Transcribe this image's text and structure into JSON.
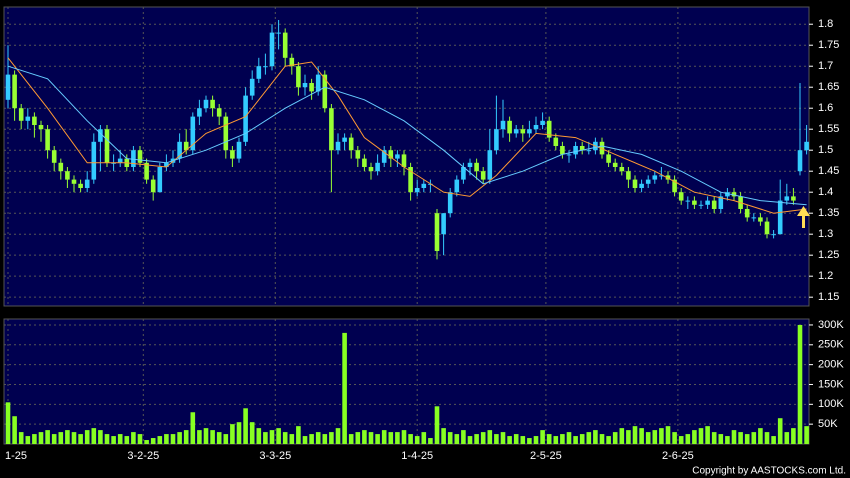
{
  "chart_data": {
    "type": "candlestick",
    "up_color": "#33ccff",
    "down_color": "#99ff33",
    "grid": true,
    "ylim": [
      1.129,
      1.841
    ],
    "yticks": [
      1.15,
      1.2,
      1.25,
      1.3,
      1.35,
      1.4,
      1.45,
      1.5,
      1.55,
      1.6,
      1.65,
      1.7,
      1.75,
      1.8
    ],
    "xticks": [
      {
        "value": 0,
        "label": "1-25"
      },
      {
        "value": 20.5,
        "label": "3-2-25"
      },
      {
        "value": 40.5,
        "label": "3-3-25"
      },
      {
        "value": 62,
        "label": "1-4-25"
      },
      {
        "value": 81.5,
        "label": "2-5-25"
      },
      {
        "value": 101.5,
        "label": "2-6-25"
      }
    ],
    "open": [
      1.62,
      1.68,
      1.6,
      1.57,
      1.58,
      1.56,
      1.55,
      1.5,
      1.47,
      1.45,
      1.43,
      1.42,
      1.41,
      1.43,
      1.52,
      1.55,
      1.47,
      1.47,
      1.48,
      1.46,
      1.5,
      1.47,
      1.43,
      1.4,
      1.46,
      1.47,
      1.48,
      1.52,
      1.5,
      1.58,
      1.6,
      1.62,
      1.6,
      1.58,
      1.5,
      1.48,
      1.52,
      1.63,
      1.67,
      1.7,
      1.7,
      1.78,
      1.78,
      1.72,
      1.7,
      1.65,
      1.66,
      1.64,
      1.68,
      1.6,
      1.5,
      1.52,
      1.53,
      1.5,
      1.48,
      1.46,
      1.45,
      1.47,
      1.5,
      1.48,
      1.49,
      1.46,
      1.4,
      1.41,
      1.42,
      1.35,
      1.3,
      1.35,
      1.4,
      1.43,
      1.46,
      1.47,
      1.45,
      1.43,
      1.5,
      1.55,
      1.57,
      1.54,
      1.55,
      1.54,
      1.55,
      1.56,
      1.57,
      1.53,
      1.51,
      1.49,
      1.49,
      1.51,
      1.5,
      1.5,
      1.52,
      1.49,
      1.47,
      1.46,
      1.45,
      1.43,
      1.41,
      1.42,
      1.43,
      1.44,
      1.44,
      1.43,
      1.4,
      1.38,
      1.38,
      1.37,
      1.37,
      1.38,
      1.36,
      1.39,
      1.4,
      1.39,
      1.36,
      1.34,
      1.34,
      1.33,
      1.3,
      1.3,
      1.38,
      1.39,
      1.45,
      1.5
    ],
    "high": [
      1.75,
      1.69,
      1.61,
      1.6,
      1.59,
      1.57,
      1.56,
      1.51,
      1.48,
      1.46,
      1.44,
      1.43,
      1.45,
      1.54,
      1.56,
      1.56,
      1.49,
      1.5,
      1.49,
      1.51,
      1.51,
      1.48,
      1.44,
      1.47,
      1.49,
      1.5,
      1.54,
      1.55,
      1.59,
      1.62,
      1.63,
      1.63,
      1.61,
      1.59,
      1.51,
      1.53,
      1.65,
      1.69,
      1.72,
      1.73,
      1.8,
      1.81,
      1.79,
      1.73,
      1.71,
      1.68,
      1.67,
      1.7,
      1.69,
      1.61,
      1.54,
      1.54,
      1.54,
      1.51,
      1.49,
      1.47,
      1.49,
      1.51,
      1.51,
      1.5,
      1.5,
      1.47,
      1.43,
      1.43,
      1.43,
      1.36,
      1.35,
      1.41,
      1.44,
      1.47,
      1.48,
      1.48,
      1.46,
      1.55,
      1.63,
      1.62,
      1.58,
      1.56,
      1.56,
      1.57,
      1.58,
      1.59,
      1.58,
      1.54,
      1.52,
      1.5,
      1.52,
      1.52,
      1.52,
      1.53,
      1.53,
      1.5,
      1.48,
      1.47,
      1.46,
      1.44,
      1.43,
      1.44,
      1.45,
      1.46,
      1.45,
      1.44,
      1.41,
      1.39,
      1.39,
      1.38,
      1.39,
      1.39,
      1.4,
      1.41,
      1.41,
      1.4,
      1.37,
      1.35,
      1.35,
      1.34,
      1.31,
      1.43,
      1.42,
      1.41,
      1.66,
      1.56
    ],
    "low": [
      1.6,
      1.57,
      1.55,
      1.55,
      1.53,
      1.52,
      1.48,
      1.45,
      1.43,
      1.41,
      1.4,
      1.4,
      1.4,
      1.42,
      1.45,
      1.46,
      1.45,
      1.46,
      1.45,
      1.45,
      1.46,
      1.42,
      1.38,
      1.4,
      1.45,
      1.46,
      1.47,
      1.49,
      1.49,
      1.56,
      1.59,
      1.58,
      1.56,
      1.48,
      1.46,
      1.47,
      1.51,
      1.62,
      1.66,
      1.68,
      1.69,
      1.74,
      1.7,
      1.68,
      1.63,
      1.63,
      1.62,
      1.63,
      1.59,
      1.4,
      1.49,
      1.5,
      1.48,
      1.46,
      1.45,
      1.43,
      1.44,
      1.46,
      1.46,
      1.46,
      1.44,
      1.38,
      1.39,
      1.4,
      1.4,
      1.24,
      1.25,
      1.34,
      1.39,
      1.42,
      1.44,
      1.43,
      1.42,
      1.42,
      1.49,
      1.53,
      1.52,
      1.53,
      1.52,
      1.53,
      1.54,
      1.55,
      1.52,
      1.5,
      1.48,
      1.47,
      1.48,
      1.49,
      1.49,
      1.49,
      1.48,
      1.46,
      1.45,
      1.44,
      1.41,
      1.4,
      1.4,
      1.41,
      1.42,
      1.43,
      1.42,
      1.39,
      1.37,
      1.36,
      1.36,
      1.36,
      1.36,
      1.35,
      1.35,
      1.38,
      1.38,
      1.35,
      1.33,
      1.33,
      1.32,
      1.29,
      1.29,
      1.3,
      1.37,
      1.37,
      1.44,
      1.49
    ],
    "close": [
      1.68,
      1.6,
      1.57,
      1.58,
      1.56,
      1.55,
      1.5,
      1.47,
      1.45,
      1.43,
      1.42,
      1.41,
      1.43,
      1.52,
      1.55,
      1.47,
      1.47,
      1.48,
      1.46,
      1.5,
      1.47,
      1.43,
      1.4,
      1.46,
      1.47,
      1.48,
      1.52,
      1.5,
      1.58,
      1.6,
      1.62,
      1.6,
      1.58,
      1.5,
      1.48,
      1.52,
      1.63,
      1.67,
      1.7,
      1.7,
      1.78,
      1.78,
      1.72,
      1.7,
      1.65,
      1.66,
      1.64,
      1.68,
      1.6,
      1.5,
      1.52,
      1.53,
      1.5,
      1.48,
      1.46,
      1.45,
      1.47,
      1.5,
      1.48,
      1.49,
      1.46,
      1.4,
      1.41,
      1.42,
      1.42,
      1.26,
      1.35,
      1.4,
      1.43,
      1.46,
      1.47,
      1.45,
      1.43,
      1.5,
      1.55,
      1.57,
      1.54,
      1.55,
      1.54,
      1.55,
      1.56,
      1.57,
      1.53,
      1.51,
      1.49,
      1.49,
      1.51,
      1.5,
      1.5,
      1.52,
      1.49,
      1.47,
      1.46,
      1.45,
      1.43,
      1.41,
      1.42,
      1.43,
      1.44,
      1.44,
      1.43,
      1.4,
      1.38,
      1.38,
      1.37,
      1.37,
      1.38,
      1.36,
      1.39,
      1.4,
      1.39,
      1.36,
      1.34,
      1.34,
      1.33,
      1.3,
      1.3,
      1.38,
      1.39,
      1.38,
      1.5,
      1.52
    ],
    "moving_averages": [
      {
        "color": "#ff9933",
        "x": [
          0,
          6,
          12,
          18,
          24,
          30,
          36,
          42,
          46,
          50,
          54,
          60,
          66,
          70,
          74,
          80,
          86,
          92,
          98,
          104,
          110,
          116,
          121
        ],
        "values": [
          1.72,
          1.6,
          1.47,
          1.47,
          1.46,
          1.54,
          1.58,
          1.7,
          1.71,
          1.63,
          1.53,
          1.46,
          1.4,
          1.39,
          1.44,
          1.54,
          1.53,
          1.49,
          1.45,
          1.4,
          1.38,
          1.35,
          1.36
        ]
      },
      {
        "color": "#66ccff",
        "x": [
          0,
          6,
          12,
          18,
          24,
          30,
          36,
          42,
          48,
          54,
          60,
          66,
          72,
          78,
          84,
          90,
          96,
          102,
          108,
          114,
          121
        ],
        "values": [
          1.7,
          1.67,
          1.57,
          1.48,
          1.47,
          1.5,
          1.54,
          1.6,
          1.65,
          1.62,
          1.57,
          1.5,
          1.42,
          1.45,
          1.49,
          1.51,
          1.49,
          1.45,
          1.4,
          1.38,
          1.37
        ]
      }
    ],
    "volume": {
      "color": "#88ff22",
      "ylim": [
        0,
        315000
      ],
      "yticks": [
        {
          "value": 50000,
          "label": "50K"
        },
        {
          "value": 100000,
          "label": "100K"
        },
        {
          "value": 150000,
          "label": "150K"
        },
        {
          "value": 200000,
          "label": "200K"
        },
        {
          "value": 250000,
          "label": "250K"
        },
        {
          "value": 300000,
          "label": "300K"
        }
      ],
      "values": [
        105000,
        70000,
        30000,
        20000,
        25000,
        30000,
        35000,
        25000,
        30000,
        35000,
        30000,
        25000,
        35000,
        40000,
        35000,
        25000,
        20000,
        25000,
        20000,
        30000,
        25000,
        10000,
        15000,
        20000,
        25000,
        25000,
        30000,
        35000,
        80000,
        35000,
        40000,
        35000,
        30000,
        25000,
        50000,
        55000,
        90000,
        55000,
        40000,
        30000,
        35000,
        40000,
        30000,
        25000,
        45000,
        20000,
        25000,
        30000,
        25000,
        30000,
        40000,
        280000,
        25000,
        30000,
        35000,
        30000,
        25000,
        35000,
        30000,
        30000,
        35000,
        25000,
        20000,
        30000,
        15000,
        95000,
        40000,
        30000,
        25000,
        35000,
        20000,
        25000,
        30000,
        35000,
        25000,
        30000,
        20000,
        25000,
        20000,
        15000,
        20000,
        35000,
        25000,
        20000,
        25000,
        30000,
        20000,
        25000,
        30000,
        35000,
        25000,
        20000,
        30000,
        40000,
        35000,
        45000,
        40000,
        30000,
        35000,
        40000,
        45000,
        30000,
        20000,
        25000,
        35000,
        40000,
        45000,
        30000,
        25000,
        20000,
        35000,
        30000,
        25000,
        30000,
        40000,
        30000,
        20000,
        65000,
        30000,
        40000,
        300000,
        45000
      ]
    },
    "copyright": "Copyright by AASTOCKS.com Ltd."
  }
}
